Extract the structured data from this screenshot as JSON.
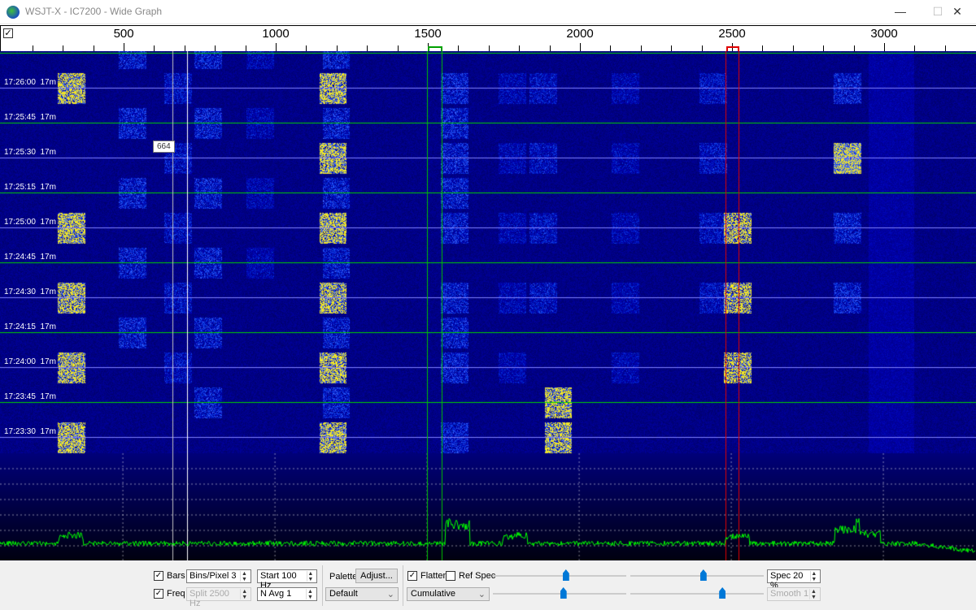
{
  "window": {
    "title": "WSJT-X - IC7200 - Wide Graph",
    "minimize": "—",
    "maximize": "☐",
    "close": "✕"
  },
  "scale": {
    "labels": [
      "500",
      "1000",
      "1500",
      "2000",
      "2500",
      "3000"
    ],
    "label_freqs": [
      500,
      1000,
      1500,
      2000,
      2500,
      3000
    ],
    "rx_marker_hz": 1500,
    "tx_marker_hz": 2500
  },
  "waterfall": {
    "time_labels": [
      "17:26:00  17m",
      "17:25:45  17m",
      "17:25:30  17m",
      "17:25:15  17m",
      "17:25:00  17m",
      "17:24:45  17m",
      "17:24:30  17m",
      "17:24:15  17m",
      "17:24:00  17m",
      "17:23:45  17m",
      "17:23:30  17m"
    ],
    "cursor_tooltip": "664"
  },
  "controls": {
    "bars": {
      "label": "Bars",
      "checked": true
    },
    "freq": {
      "label": "Freq",
      "checked": true
    },
    "bins_pixel": "Bins/Pixel  3",
    "split": "Split  2500  Hz",
    "start": "Start 100 Hz",
    "n_avg": "N Avg 1",
    "palette_label": "Palette",
    "adjust_button": "Adjust...",
    "palette_value": "Default",
    "flatten": {
      "label": "Flatten",
      "checked": true
    },
    "ref_spec": {
      "label": "Ref Spec",
      "checked": false
    },
    "spectrum_mode": "Cumulative",
    "spec": "Spec 20 %",
    "smooth": "Smooth  1",
    "sliders": {
      "top_left": 0.55,
      "top_right": 0.55,
      "bottom_left": 0.53,
      "bottom_right": 0.7
    }
  },
  "colors": {
    "rx_marker": "#00c000",
    "tx_marker": "#e00000",
    "signal": "#f0e020",
    "spectrum": "#00ff00",
    "background": "#00007a"
  }
}
